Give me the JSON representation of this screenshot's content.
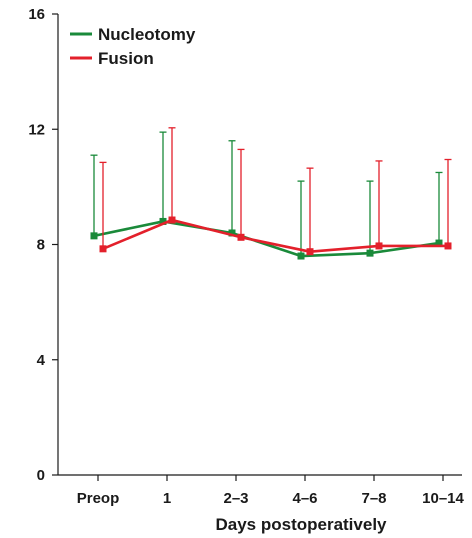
{
  "chart_data": {
    "type": "line",
    "title": "",
    "xlabel": "Days postoperatively",
    "ylabel": "",
    "categories": [
      "Preop",
      "1",
      "2–3",
      "4–6",
      "7–8",
      "10–14"
    ],
    "ylim": [
      0,
      16
    ],
    "yticks": [
      0,
      4,
      8,
      12,
      16
    ],
    "grid": false,
    "legend": "top-left",
    "series": [
      {
        "name": "Nucleotomy",
        "color": "#1a8a3a",
        "values": [
          8.3,
          8.8,
          8.4,
          7.6,
          7.7,
          8.05
        ],
        "error_upper": [
          11.1,
          11.9,
          11.6,
          10.2,
          10.2,
          10.5
        ]
      },
      {
        "name": "Fusion",
        "color": "#e3202b",
        "values": [
          7.85,
          8.85,
          8.25,
          7.75,
          7.95,
          7.95
        ],
        "error_upper": [
          10.85,
          12.05,
          11.3,
          10.65,
          10.9,
          10.95
        ]
      }
    ]
  }
}
